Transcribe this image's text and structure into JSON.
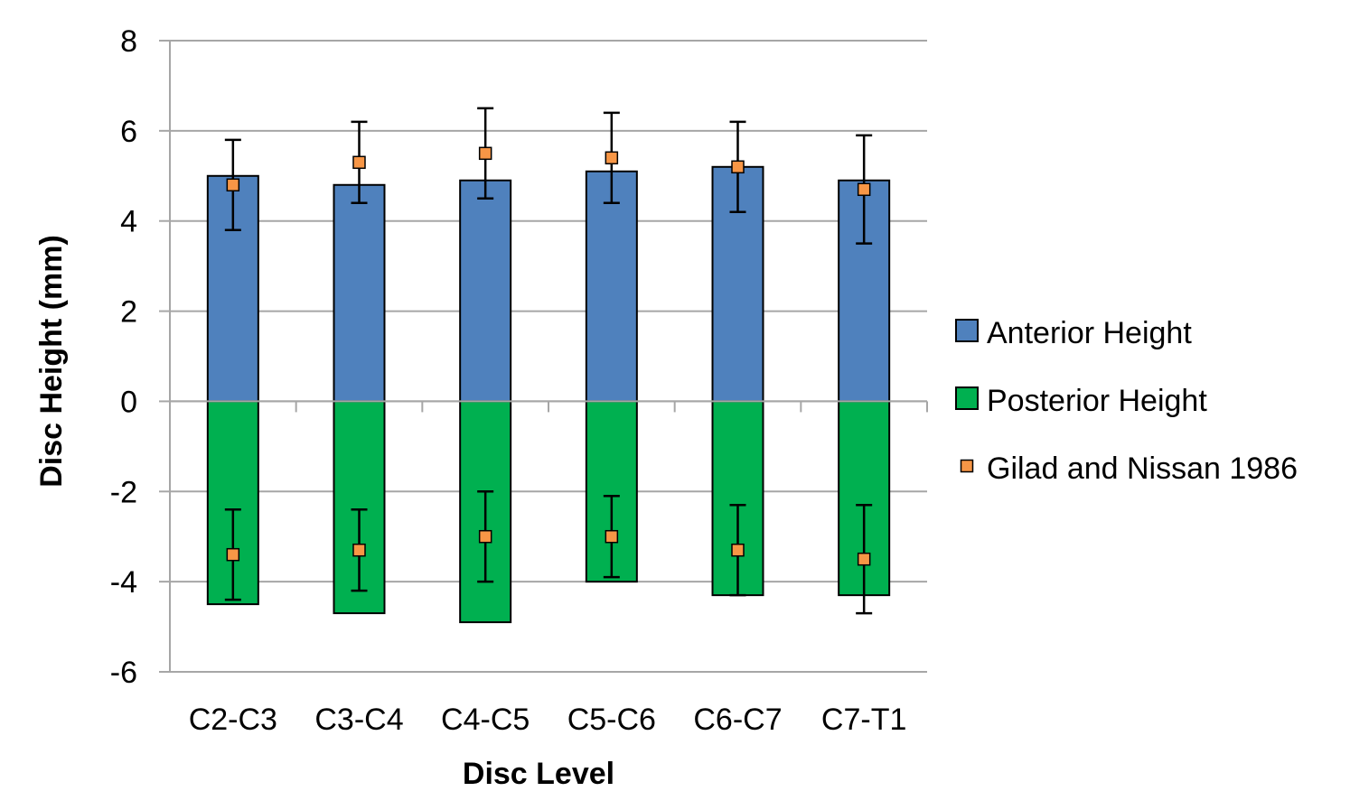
{
  "chart_data": {
    "type": "bar",
    "categories": [
      "C2-C3",
      "C3-C4",
      "C4-C5",
      "C5-C6",
      "C6-C7",
      "C7-T1"
    ],
    "series": [
      {
        "name": "Anterior Height",
        "type": "bar",
        "color": "#4F81BD",
        "values": [
          5.0,
          4.8,
          4.9,
          5.1,
          5.2,
          4.9
        ]
      },
      {
        "name": "Posterior Height",
        "type": "bar",
        "color": "#00B050",
        "values": [
          -4.5,
          -4.7,
          -4.9,
          -4.0,
          -4.3,
          -4.3
        ]
      },
      {
        "name": "Gilad and Nissan 1986",
        "type": "scatter",
        "color": "#F79646",
        "anterior": {
          "values": [
            4.8,
            5.3,
            5.5,
            5.4,
            5.2,
            4.7
          ],
          "error_low": [
            3.8,
            4.4,
            4.5,
            4.4,
            4.2,
            3.5
          ],
          "error_high": [
            5.8,
            6.2,
            6.5,
            6.4,
            6.2,
            5.9
          ]
        },
        "posterior": {
          "values": [
            -3.4,
            -3.3,
            -3.0,
            -3.0,
            -3.3,
            -3.5
          ],
          "error_low": [
            -4.4,
            -4.2,
            -4.0,
            -3.9,
            -4.3,
            -4.7
          ],
          "error_high": [
            -2.4,
            -2.4,
            -2.0,
            -2.1,
            -2.3,
            -2.3
          ]
        }
      }
    ],
    "title": "",
    "xlabel": "Disc Level",
    "ylabel": "Disc Height (mm)",
    "ylim": [
      -6,
      8
    ],
    "yticks": [
      -6,
      -4,
      -2,
      0,
      2,
      4,
      6,
      8
    ],
    "ytick_labels": [
      "-6",
      "-4",
      "-2",
      "0",
      "2",
      "4",
      "6",
      "8"
    ],
    "grid": true,
    "legend_position": "right"
  }
}
